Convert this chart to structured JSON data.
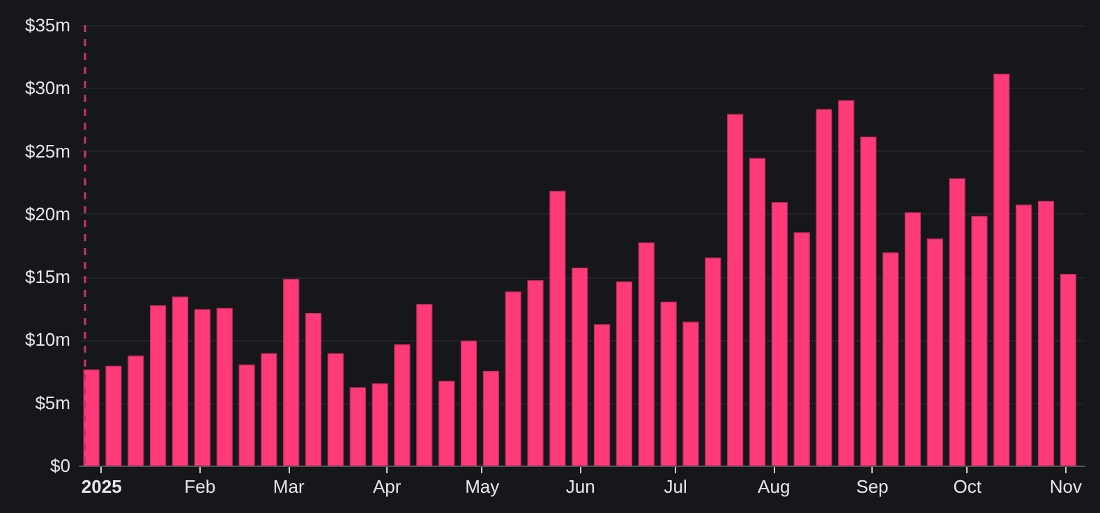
{
  "chart_data": {
    "type": "bar",
    "x": [
      "2024-12-29",
      "2025-01-05",
      "2025-01-12",
      "2025-01-19",
      "2025-01-26",
      "2025-02-02",
      "2025-02-09",
      "2025-02-16",
      "2025-02-23",
      "2025-03-02",
      "2025-03-09",
      "2025-03-16",
      "2025-03-23",
      "2025-03-30",
      "2025-04-06",
      "2025-04-13",
      "2025-04-20",
      "2025-04-27",
      "2025-05-04",
      "2025-05-11",
      "2025-05-18",
      "2025-05-25",
      "2025-06-01",
      "2025-06-08",
      "2025-06-15",
      "2025-06-22",
      "2025-06-29",
      "2025-07-06",
      "2025-07-13",
      "2025-07-20",
      "2025-07-27",
      "2025-08-03",
      "2025-08-10",
      "2025-08-17",
      "2025-08-24",
      "2025-08-31",
      "2025-09-07",
      "2025-09-14",
      "2025-09-21",
      "2025-09-28",
      "2025-10-05",
      "2025-10-12",
      "2025-10-19",
      "2025-10-26",
      "2025-11-02"
    ],
    "values": [
      7.6,
      7.9,
      8.7,
      12.7,
      13.4,
      12.4,
      12.5,
      8.0,
      8.9,
      14.8,
      12.1,
      8.9,
      6.2,
      6.5,
      9.6,
      12.8,
      6.7,
      9.9,
      7.5,
      13.8,
      14.7,
      21.8,
      15.7,
      11.2,
      14.6,
      17.7,
      13.0,
      11.4,
      16.5,
      27.9,
      24.4,
      20.9,
      18.5,
      28.3,
      29.0,
      26.1,
      16.9,
      20.1,
      18.0,
      22.8,
      19.8,
      31.1,
      20.7,
      21.0,
      15.2
    ],
    "color": "#ff3a78",
    "xlim": [
      "2024-12-27",
      "2025-11-05"
    ],
    "xticks": [
      {
        "value": "2025-01-01",
        "label": "2025"
      },
      {
        "value": "2025-02-01",
        "label": "Feb"
      },
      {
        "value": "2025-03-01",
        "label": "Mar"
      },
      {
        "value": "2025-04-01",
        "label": "Apr"
      },
      {
        "value": "2025-05-01",
        "label": "May"
      },
      {
        "value": "2025-06-01",
        "label": "Jun"
      },
      {
        "value": "2025-07-01",
        "label": "Jul"
      },
      {
        "value": "2025-08-01",
        "label": "Aug"
      },
      {
        "value": "2025-09-01",
        "label": "Sep"
      },
      {
        "value": "2025-10-01",
        "label": "Oct"
      },
      {
        "value": "2025-11-01",
        "label": "Nov"
      }
    ],
    "ylim": [
      0,
      35
    ],
    "yticks": [
      {
        "value": 0,
        "label": "$0"
      },
      {
        "value": 5,
        "label": "$5m"
      },
      {
        "value": 10,
        "label": "$10m"
      },
      {
        "value": 15,
        "label": "$15m"
      },
      {
        "value": 20,
        "label": "$20m"
      },
      {
        "value": 25,
        "label": "$25m"
      },
      {
        "value": 30,
        "label": "$30m"
      },
      {
        "value": 35,
        "label": "$35m"
      }
    ],
    "grid": "y",
    "ref_lines": [
      {
        "axis": "x",
        "value": "2024-12-27",
        "color": "#d4306a",
        "line_style": "dashed"
      }
    ]
  }
}
